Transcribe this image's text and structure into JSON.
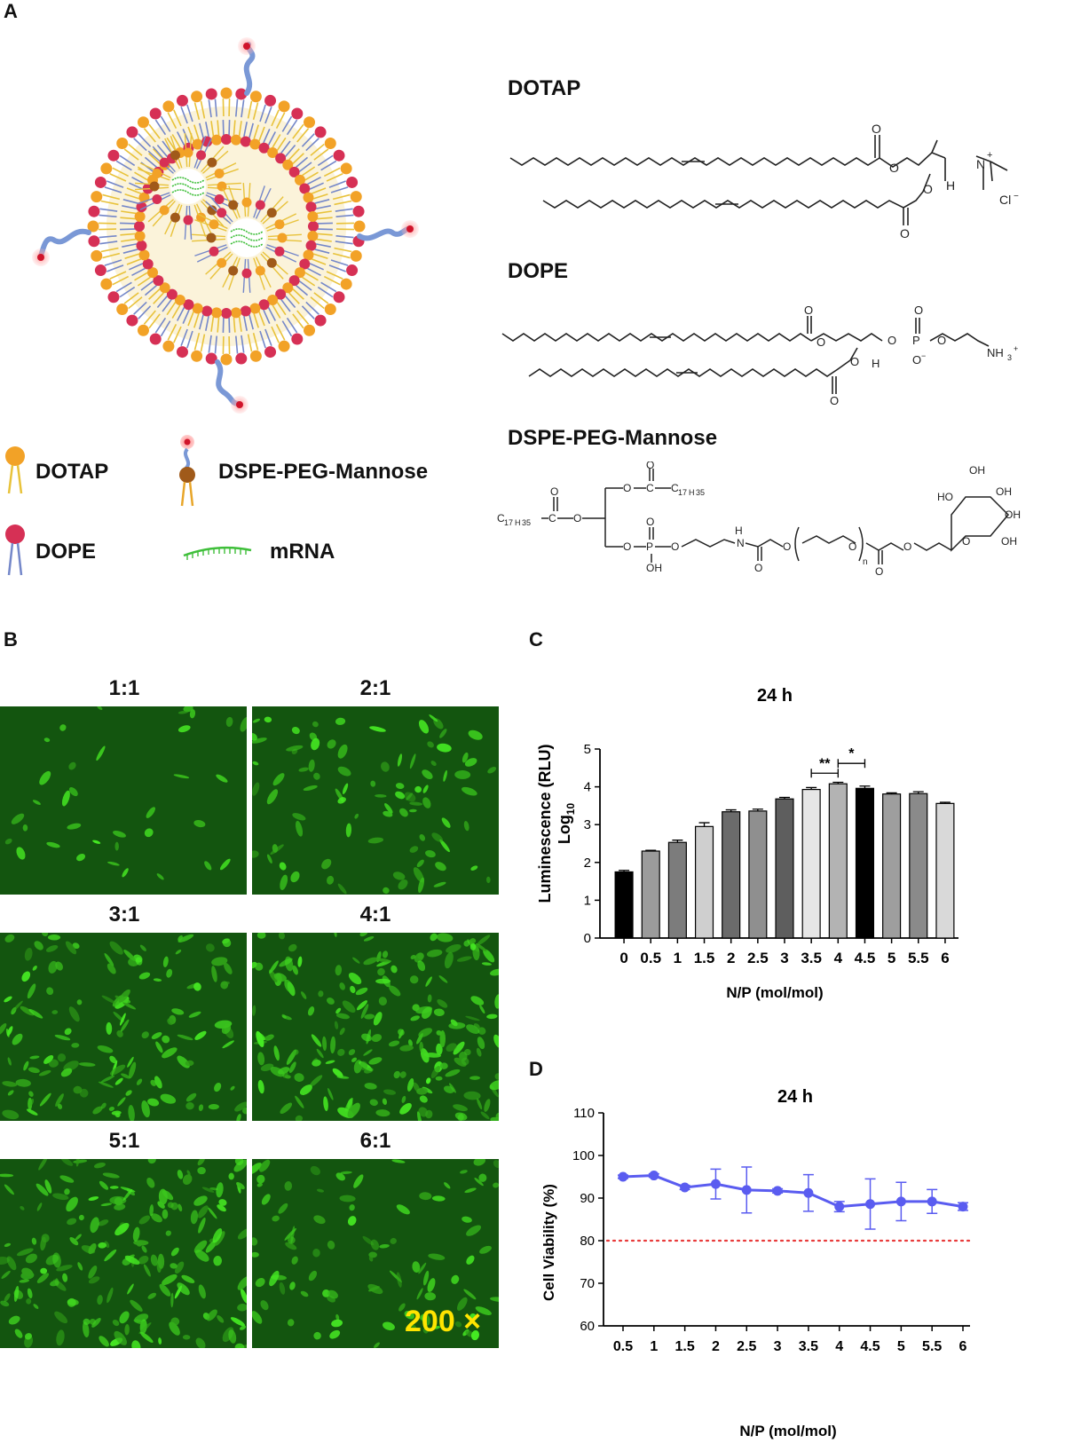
{
  "panels": {
    "a": "A",
    "b": "B",
    "c": "C",
    "d": "D"
  },
  "legend": {
    "dotap": "DOTAP",
    "dope": "DOPE",
    "dspe": "DSPE-PEG-Mannose",
    "mrna": "mRNA"
  },
  "chemistry": {
    "dotap_title": "DOTAP",
    "dope_title": "DOPE",
    "dspe_title": "DSPE-PEG-Mannose"
  },
  "microscopy": {
    "labels": [
      "1:1",
      "2:1",
      "3:1",
      "4:1",
      "5:1",
      "6:1"
    ],
    "magnification": "200 ×"
  },
  "colors": {
    "fluorescence": "#2fbf1f",
    "background_green": "#0f4a0c",
    "viability_line": "#5a5cf0",
    "threshold_line": "#e83a3a"
  },
  "chart_data": [
    {
      "type": "bar",
      "title": "24 h",
      "xlabel": "N/P (mol/mol)",
      "ylabel": "Luminescence (RLU)",
      "ylabel_sub": "Log",
      "ylabel_subscript": "10",
      "ylim": [
        0,
        5
      ],
      "yticks": [
        0,
        1,
        2,
        3,
        4,
        5
      ],
      "categories": [
        "0",
        "0.5",
        "1",
        "1.5",
        "2",
        "2.5",
        "3",
        "3.5",
        "4",
        "4.5",
        "5",
        "5.5",
        "6"
      ],
      "values": [
        1.75,
        2.3,
        2.53,
        2.95,
        3.34,
        3.36,
        3.68,
        3.93,
        4.08,
        3.96,
        3.81,
        3.82,
        3.56
      ],
      "errors": [
        0.04,
        0.02,
        0.06,
        0.1,
        0.05,
        0.05,
        0.04,
        0.05,
        0.04,
        0.06,
        0.03,
        0.05,
        0.03
      ],
      "fills": [
        "#000000",
        "#9b9b9b",
        "#7c7c7c",
        "#cfcfcf",
        "#6b6b6b",
        "#8f8f8f",
        "#5e5e5e",
        "#e6e6e6",
        "#b3b3b3",
        "#000000",
        "#9e9e9e",
        "#8a8a8a",
        "#d9d9d9"
      ],
      "significance": [
        {
          "from": "3.5",
          "to": "4",
          "label": "**"
        },
        {
          "from": "4",
          "to": "4.5",
          "label": "*"
        }
      ]
    },
    {
      "type": "line",
      "title": "24 h",
      "xlabel": "N/P (mol/mol)",
      "ylabel": "Cell Viability (%)",
      "ylim": [
        60,
        110
      ],
      "yticks": [
        60,
        70,
        80,
        90,
        100,
        110
      ],
      "categories": [
        "0.5",
        "1",
        "1.5",
        "2",
        "2.5",
        "3",
        "3.5",
        "4",
        "4.5",
        "5",
        "5.5",
        "6"
      ],
      "values": [
        95.0,
        95.3,
        92.5,
        93.3,
        91.9,
        91.7,
        91.2,
        88.0,
        88.6,
        89.2,
        89.2,
        88.0
      ],
      "errors": [
        0.4,
        0.4,
        0.5,
        3.5,
        5.4,
        0.5,
        4.3,
        1.2,
        5.9,
        4.5,
        2.8,
        0.9
      ],
      "reference_line": 80
    }
  ]
}
